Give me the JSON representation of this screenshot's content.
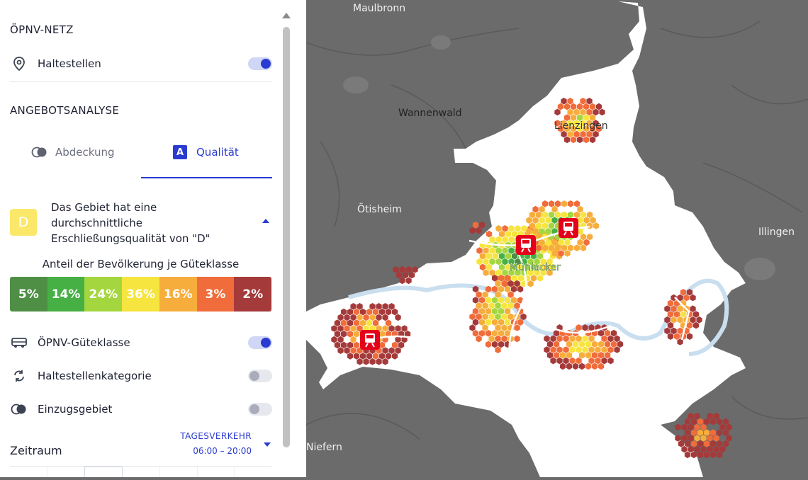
{
  "panel": {
    "network_section": {
      "title": "ÖPNV-NETZ",
      "stops_label": "Haltestellen",
      "stops_on": true
    },
    "analysis_section": {
      "title": "ANGEBOTSANALYSE"
    },
    "tabs": [
      {
        "label": "Abdeckung",
        "active": false
      },
      {
        "label": "Qualität",
        "active": true,
        "icon_letter": "A"
      }
    ],
    "quality": {
      "grade": "D",
      "description": "Das Gebiet hat eine durchschnittliche Erschließungsqualität von \"D\"",
      "scale_title": "Anteil der Bevölkerung je Güteklasse",
      "scale": [
        {
          "value": "5%",
          "color": "#4e8f45"
        },
        {
          "value": "14%",
          "color": "#46b044"
        },
        {
          "value": "24%",
          "color": "#a4d63f"
        },
        {
          "value": "36%",
          "color": "#f6e43f"
        },
        {
          "value": "16%",
          "color": "#f6ad3c"
        },
        {
          "value": "3%",
          "color": "#f06c3b"
        },
        {
          "value": "2%",
          "color": "#a53a3a"
        }
      ]
    },
    "layers": [
      {
        "name": "guteklasse",
        "label": "ÖPNV-Güteklasse",
        "icon": "bus-icon",
        "on": true
      },
      {
        "name": "haltestellenkategorie",
        "label": "Haltestellenkategorie",
        "icon": "refresh-icon",
        "on": false
      },
      {
        "name": "einzugsgebiet",
        "label": "Einzugsgebiet",
        "icon": "overlap-circles-icon",
        "on": false
      }
    ],
    "period": {
      "label": "Zeitraum",
      "value_title": "TAGESVERKEHR",
      "value_time": "06:00 – 20:00"
    }
  },
  "map": {
    "labels": {
      "maulbronn": "Maulbronn",
      "wannenwald": "Wannenwald",
      "lienzingen": "Lienzingen",
      "oetisheim": "Ötisheim",
      "illingen": "Illingen",
      "muehlacker": "Mühlacker",
      "niefern": "Niefern"
    },
    "colors": {
      "outside": "#6b6b6b",
      "area": "#ffffff",
      "river": "#c9dff0",
      "station_marker": "#e4001b"
    }
  }
}
